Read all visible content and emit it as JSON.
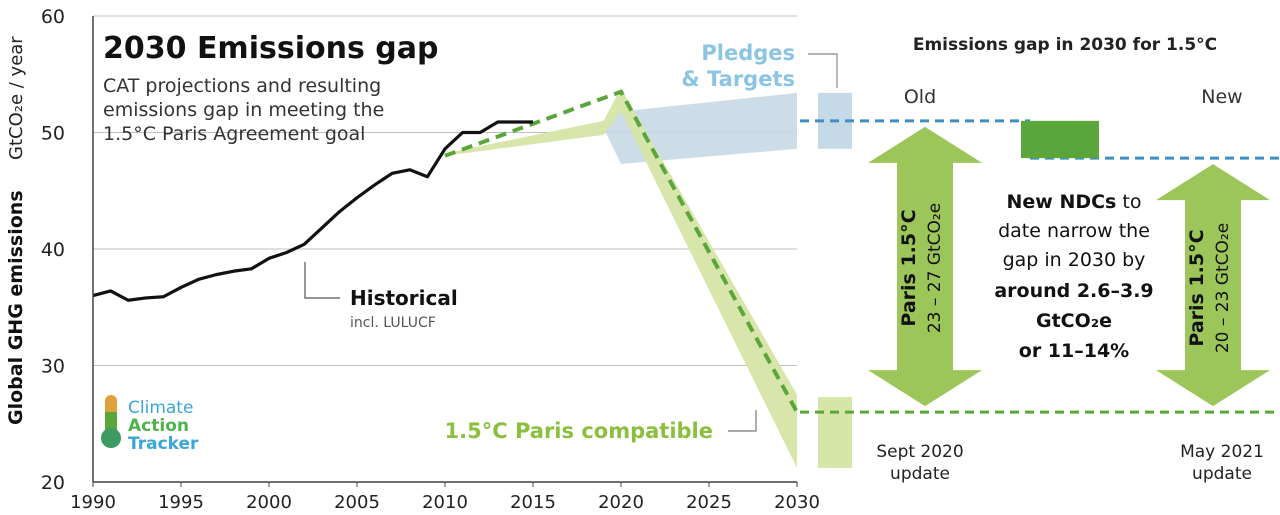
{
  "colors": {
    "historical": "#111111",
    "pledges_band": "#c6d9e6",
    "pledges_text": "#8cc4e3",
    "paris_band": "#d6e5a8",
    "paris_line": "#5aa63a",
    "paris_text": "#8cbf3f",
    "gap_box": "#5aa63a",
    "gap_dashed": "#3d8fc4",
    "arrow_fill": "#9cc55a",
    "grid": "#bfbfbf",
    "logo_text": "#3aa6d8"
  },
  "chart_data": {
    "type": "line",
    "title": "2030 Emissions gap",
    "subtitle": [
      "CAT projections and resulting",
      "emissions gap in meeting the",
      "1.5°C Paris Agreement goal"
    ],
    "ylabel_main": "Global GHG  emissions",
    "ylabel_unit": "GtCO₂e / year",
    "xlim": [
      1990,
      2030
    ],
    "ylim": [
      20,
      60
    ],
    "xticks": [
      1990,
      1995,
      2000,
      2005,
      2010,
      2015,
      2020,
      2025,
      2030
    ],
    "yticks": [
      20,
      30,
      40,
      50,
      60
    ],
    "series": [
      {
        "name": "Historical",
        "sublabel": "incl. LULUCF",
        "x": [
          1990,
          1991,
          1992,
          1993,
          1994,
          1995,
          1996,
          1997,
          1998,
          1999,
          2000,
          2001,
          2002,
          2003,
          2004,
          2005,
          2006,
          2007,
          2008,
          2009,
          2010,
          2011,
          2012,
          2013,
          2014,
          2015
        ],
        "y": [
          36.0,
          36.4,
          35.6,
          35.8,
          35.9,
          36.7,
          37.4,
          37.8,
          38.1,
          38.3,
          39.2,
          39.7,
          40.4,
          41.8,
          43.2,
          44.4,
          45.5,
          46.5,
          46.8,
          46.2,
          48.6,
          50.0,
          50.0,
          50.9,
          50.9,
          50.9
        ]
      },
      {
        "name": "Pledges & Targets",
        "band_x": [
          2018,
          2019,
          2020,
          2030
        ],
        "band_low": [
          50.2,
          50.4,
          47.3,
          48.6
        ],
        "band_high": [
          50.4,
          51.0,
          51.8,
          53.4
        ]
      },
      {
        "name": "1.5°C Paris compatible",
        "line_x": [
          2010,
          2020,
          2030
        ],
        "line_y": [
          48.0,
          53.5,
          26.0
        ],
        "band_x": [
          2010,
          2019,
          2020,
          2030
        ],
        "band_high": [
          48.2,
          51.0,
          53.8,
          27.5
        ],
        "band_low": [
          48.0,
          49.8,
          51.8,
          21.2
        ]
      }
    ],
    "gap_panel": {
      "title": "Emissions gap in 2030 for 1.5°C",
      "old_label": "Old",
      "new_label": "New",
      "old_top": 51.0,
      "new_top": 47.8,
      "paris_level": 26.0,
      "narrow_top": 51.0,
      "narrow_bottom": 47.8,
      "left_arrow_title": "Paris 1.5°C",
      "left_arrow_range": "23 – 27 GtCO₂e",
      "right_arrow_title": "Paris 1.5°C",
      "right_arrow_range": "20 – 23 GtCO₂e",
      "message_line1_bold": "New NDCs",
      "message_line1_rest": " to",
      "message_line2": "date narrow the",
      "message_line3": "gap in 2030 by",
      "message_line4": "around 2.6–3.9",
      "message_line5": "GtCO₂e",
      "message_line6": "or 11–14%",
      "old_caption": [
        "Sept 2020",
        "update"
      ],
      "new_caption": [
        "May 2021",
        "update"
      ]
    },
    "labels": {
      "pledges": [
        "Pledges",
        "& Targets"
      ],
      "historical": "Historical",
      "historical_sub": "incl. LULUCF",
      "paris": "1.5°C Paris compatible"
    }
  },
  "logo": {
    "line1": "Climate",
    "line2": "Action",
    "line3": "Tracker"
  }
}
